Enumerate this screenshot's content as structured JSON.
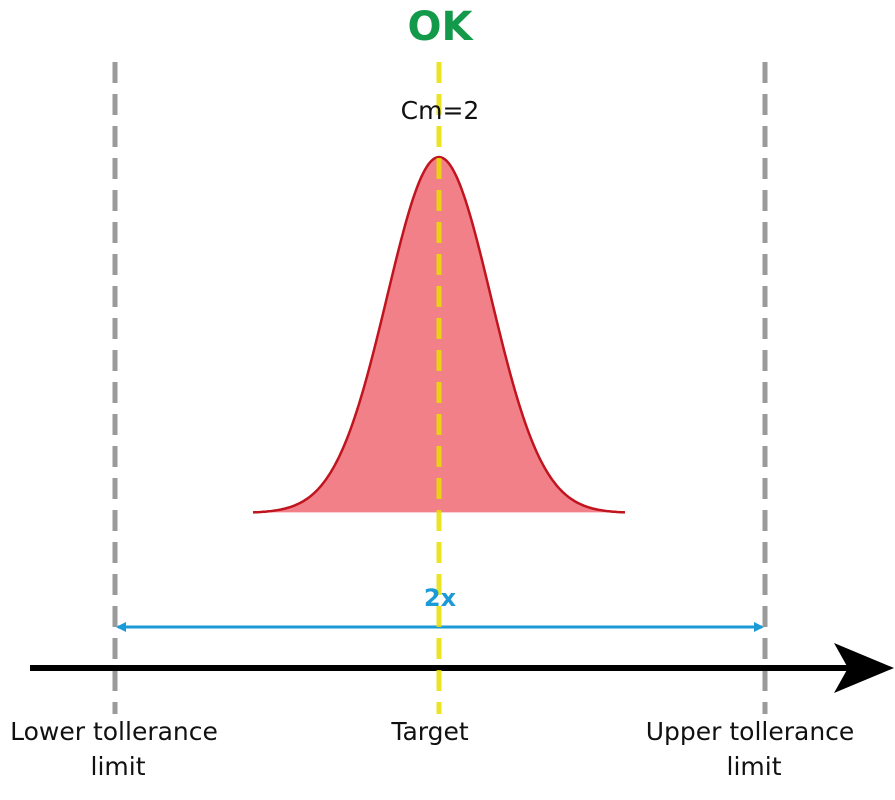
{
  "status": "OK",
  "cm_label": "Cm=2",
  "spread_label": "2x",
  "axis_labels": {
    "lower": [
      "Lower tollerance",
      "limit"
    ],
    "target": [
      "Target"
    ],
    "upper": [
      "Upper tollerance",
      "limit"
    ]
  }
}
